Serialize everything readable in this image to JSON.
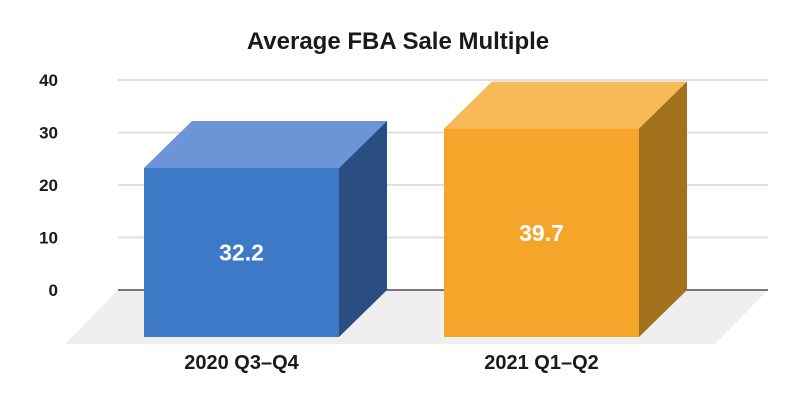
{
  "chart_data": {
    "type": "bar",
    "variant": "3d-column",
    "title": "Average FBA Sale Multiple",
    "categories": [
      "2020 Q3–Q4",
      "2021 Q1–Q2"
    ],
    "values": [
      32.2,
      39.7
    ],
    "series": [
      {
        "name": "2020 Q3–Q4",
        "value": 32.2,
        "value_label": "32.2",
        "colors": {
          "front": "#3d79c6",
          "top": "#6c95d8",
          "side": "#2b4e82"
        }
      },
      {
        "name": "2021 Q1–Q2",
        "value": 39.7,
        "value_label": "39.7",
        "colors": {
          "front": "#f6a52b",
          "top": "#f7ba56",
          "side": "#a1711c"
        }
      }
    ],
    "xlabel": "",
    "ylabel": "",
    "ylim": [
      0,
      40
    ],
    "yticks": [
      0,
      10,
      20,
      30,
      40
    ],
    "grid": true,
    "legend": "none",
    "style_colors": {
      "gridline": "#e0e0e0",
      "zero_axis": "#757575",
      "floor": "#efefef",
      "text": "#1a1a1a",
      "value_text": "#ffffff",
      "background": "#ffffff"
    }
  }
}
